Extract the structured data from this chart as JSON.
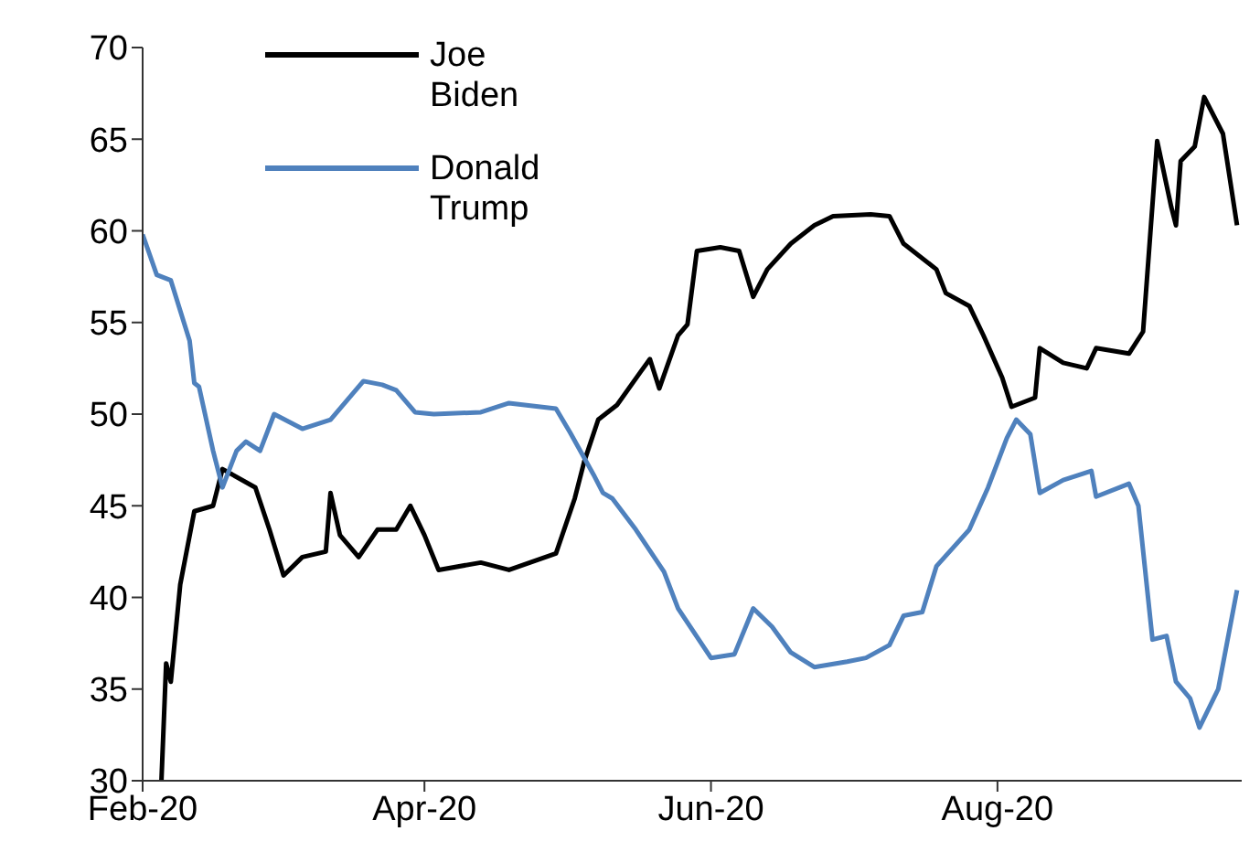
{
  "chart_data": {
    "type": "line",
    "legend": "top left",
    "grid": false,
    "marker": "none",
    "line_style": "solid",
    "xlim": [
      "2020-02-01",
      "2020-09-22"
    ],
    "xticks": [
      {
        "value": "2020-02-01",
        "label": "Feb-20"
      },
      {
        "value": "2020-04-01",
        "label": "Apr-20"
      },
      {
        "value": "2020-06-01",
        "label": "Jun-20"
      },
      {
        "value": "2020-08-01",
        "label": "Aug-20"
      }
    ],
    "ylim": [
      30,
      70
    ],
    "yticks": [
      30,
      35,
      40,
      45,
      50,
      55,
      60,
      65,
      70
    ],
    "series": [
      {
        "name": "Joe Biden",
        "color": "#000000",
        "x": [
          "2020-02-05",
          "2020-02-06",
          "2020-02-07",
          "2020-02-09",
          "2020-02-12",
          "2020-02-16",
          "2020-02-18",
          "2020-02-25",
          "2020-02-28",
          "2020-03-02",
          "2020-03-06",
          "2020-03-11",
          "2020-03-12",
          "2020-03-14",
          "2020-03-18",
          "2020-03-22",
          "2020-03-26",
          "2020-03-29",
          "2020-04-01",
          "2020-04-04",
          "2020-04-13",
          "2020-04-19",
          "2020-04-29",
          "2020-05-03",
          "2020-05-05",
          "2020-05-08",
          "2020-05-12",
          "2020-05-17",
          "2020-05-19",
          "2020-05-21",
          "2020-05-25",
          "2020-05-27",
          "2020-05-29",
          "2020-06-03",
          "2020-06-07",
          "2020-06-10",
          "2020-06-13",
          "2020-06-18",
          "2020-06-23",
          "2020-06-27",
          "2020-07-05",
          "2020-07-09",
          "2020-07-12",
          "2020-07-19",
          "2020-07-21",
          "2020-07-26",
          "2020-07-29",
          "2020-08-02",
          "2020-08-04",
          "2020-08-09",
          "2020-08-10",
          "2020-08-15",
          "2020-08-20",
          "2020-08-22",
          "2020-08-29",
          "2020-09-01",
          "2020-09-04",
          "2020-09-07",
          "2020-09-08",
          "2020-09-09",
          "2020-09-12",
          "2020-09-14",
          "2020-09-18",
          "2020-09-21"
        ],
        "values": [
          30,
          36.4,
          35.4,
          40.7,
          44.7,
          45,
          47,
          46,
          43.7,
          41.2,
          42.2,
          42.5,
          45.7,
          43.4,
          42.2,
          43.7,
          43.7,
          45,
          43.4,
          41.5,
          41.9,
          41.5,
          42.4,
          45.4,
          47.4,
          49.7,
          50.5,
          52.3,
          53,
          51.4,
          54.3,
          54.9,
          58.9,
          59.1,
          58.9,
          56.4,
          57.9,
          59.3,
          60.3,
          60.8,
          60.9,
          60.8,
          59.3,
          57.9,
          56.6,
          55.9,
          54.3,
          52,
          50.4,
          50.9,
          53.6,
          52.8,
          52.5,
          53.6,
          53.3,
          54.5,
          64.9,
          61.3,
          60.3,
          63.8,
          64.6,
          67.3,
          65.3,
          60.3
        ]
      },
      {
        "name": "Donald Trump",
        "color": "#4f81bd",
        "x": [
          "2020-02-01",
          "2020-02-04",
          "2020-02-07",
          "2020-02-11",
          "2020-02-12",
          "2020-02-13",
          "2020-02-16",
          "2020-02-18",
          "2020-02-21",
          "2020-02-23",
          "2020-02-26",
          "2020-02-29",
          "2020-03-06",
          "2020-03-12",
          "2020-03-19",
          "2020-03-23",
          "2020-03-26",
          "2020-03-30",
          "2020-04-03",
          "2020-04-13",
          "2020-04-19",
          "2020-04-29",
          "2020-05-02",
          "2020-05-07",
          "2020-05-09",
          "2020-05-11",
          "2020-05-16",
          "2020-05-22",
          "2020-05-25",
          "2020-06-01",
          "2020-06-06",
          "2020-06-10",
          "2020-06-14",
          "2020-06-18",
          "2020-06-23",
          "2020-06-30",
          "2020-07-04",
          "2020-07-09",
          "2020-07-12",
          "2020-07-16",
          "2020-07-19",
          "2020-07-26",
          "2020-07-30",
          "2020-08-03",
          "2020-08-05",
          "2020-08-08",
          "2020-08-10",
          "2020-08-15",
          "2020-08-21",
          "2020-08-22",
          "2020-08-29",
          "2020-08-31",
          "2020-09-03",
          "2020-09-06",
          "2020-09-08",
          "2020-09-11",
          "2020-09-13",
          "2020-09-17",
          "2020-09-21"
        ],
        "values": [
          59.8,
          57.6,
          57.3,
          54,
          51.7,
          51.5,
          48,
          46,
          48,
          48.5,
          48,
          50,
          49.2,
          49.7,
          51.8,
          51.6,
          51.3,
          50.1,
          50,
          50.1,
          50.6,
          50.3,
          49,
          46.7,
          45.7,
          45.4,
          43.7,
          41.4,
          39.4,
          36.7,
          36.9,
          39.4,
          38.4,
          37,
          36.2,
          36.5,
          36.7,
          37.4,
          39,
          39.2,
          41.7,
          43.7,
          46,
          48.7,
          49.7,
          48.9,
          45.7,
          46.4,
          46.9,
          45.5,
          46.2,
          45,
          37.7,
          37.9,
          35.4,
          34.5,
          32.9,
          35,
          40.4
        ]
      }
    ]
  }
}
